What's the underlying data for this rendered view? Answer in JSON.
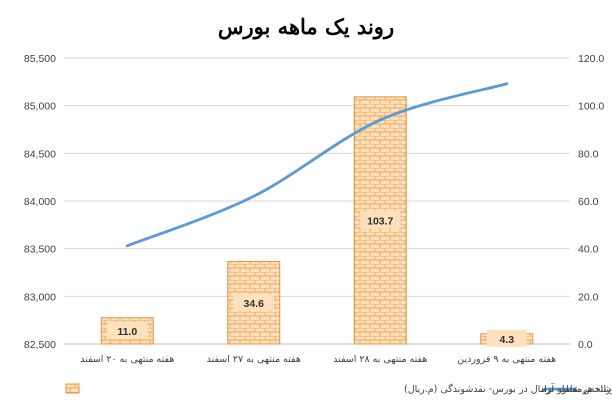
{
  "chart_data": {
    "type": "bar",
    "title": "روند یک ماهه بورس",
    "categories": [
      "هفته منتهی به ۲۰ اسفند",
      "هفته منتهی به ۲۷ اسفند",
      "هفته منتهی به ۲۸ اسفند",
      "هفته منتهی به ۹ فروردین"
    ],
    "left_axis": {
      "ylim": [
        82500,
        85500
      ],
      "ticks": [
        "82,500",
        "83,000",
        "83,500",
        "84,000",
        "84,500",
        "85,000",
        "85,500"
      ]
    },
    "right_axis": {
      "ylim": [
        0,
        120
      ],
      "ticks": [
        "0.0",
        "20.0",
        "40.0",
        "60.0",
        "80.0",
        "100.0",
        "120.0"
      ]
    },
    "series": [
      {
        "name": "متوسط ارزش روزانه هرمعامله نرمال در بورس- نقدشوندگی (م.ریال)",
        "type": "bar",
        "axis": "right",
        "values": [
          11.0,
          34.6,
          103.7,
          4.3
        ],
        "labels": [
          "11.0",
          "34.6",
          "103.7",
          "4.3"
        ],
        "color": "#F5B26B",
        "edge_color": "#E8923A"
      },
      {
        "name": "شاخص شناور آزاد",
        "type": "line",
        "axis": "left",
        "values": [
          83530,
          84050,
          84850,
          85230
        ],
        "color": "#5B9BD5"
      }
    ],
    "legend_position": "bottom",
    "grid": true
  }
}
